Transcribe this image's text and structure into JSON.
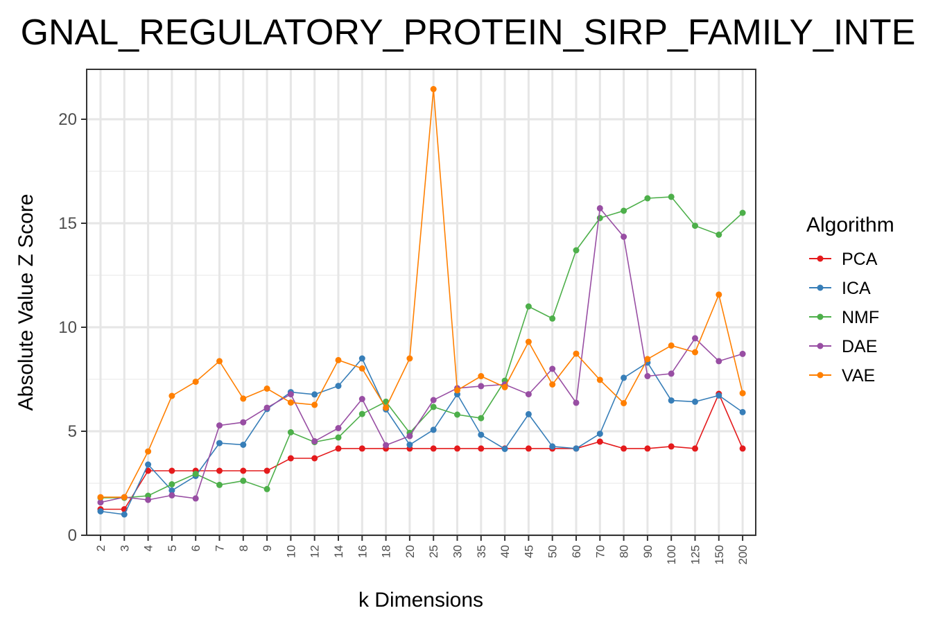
{
  "chart_data": {
    "type": "line",
    "title": "GNAL_REGULATORY_PROTEIN_SIRP_FAMILY_INTE",
    "xlabel": "k Dimensions",
    "ylabel": "Absolute Value Z Score",
    "categories": [
      "2",
      "3",
      "4",
      "5",
      "6",
      "7",
      "8",
      "9",
      "10",
      "12",
      "14",
      "16",
      "18",
      "20",
      "25",
      "30",
      "35",
      "40",
      "45",
      "50",
      "60",
      "70",
      "80",
      "90",
      "100",
      "125",
      "150",
      "200"
    ],
    "ylim": [
      0,
      22.4
    ],
    "yticks": [
      0,
      5,
      10,
      15,
      20
    ],
    "grid": true,
    "legend": {
      "title": "Algorithm",
      "position": "right"
    },
    "series": [
      {
        "name": "PCA",
        "color": "#E41A1C",
        "values": [
          1.25,
          1.25,
          3.1,
          3.1,
          3.1,
          3.1,
          3.1,
          3.1,
          3.7,
          3.7,
          4.17,
          4.17,
          4.17,
          4.17,
          4.17,
          4.17,
          4.17,
          4.17,
          4.17,
          4.17,
          4.17,
          4.5,
          4.17,
          4.17,
          4.27,
          4.17,
          6.8,
          4.17
        ]
      },
      {
        "name": "ICA",
        "color": "#377EB8",
        "values": [
          1.15,
          1.0,
          3.4,
          2.15,
          2.85,
          4.43,
          4.35,
          6.07,
          6.88,
          6.77,
          7.18,
          8.5,
          6.05,
          4.35,
          5.07,
          6.78,
          4.83,
          4.15,
          5.82,
          4.27,
          4.17,
          4.88,
          7.57,
          8.3,
          6.48,
          6.42,
          6.72,
          5.92
        ]
      },
      {
        "name": "NMF",
        "color": "#4DAF4A",
        "values": [
          1.8,
          1.8,
          1.9,
          2.45,
          2.95,
          2.42,
          2.62,
          2.22,
          4.95,
          4.48,
          4.7,
          5.83,
          6.42,
          4.92,
          6.17,
          5.8,
          5.63,
          7.43,
          11.0,
          10.42,
          13.7,
          15.25,
          15.6,
          16.2,
          16.27,
          14.88,
          14.45,
          15.5
        ]
      },
      {
        "name": "DAE",
        "color": "#984EA3",
        "values": [
          1.58,
          1.83,
          1.7,
          1.92,
          1.77,
          5.28,
          5.43,
          6.13,
          6.78,
          4.52,
          5.15,
          6.55,
          4.33,
          4.77,
          6.5,
          7.07,
          7.17,
          7.25,
          6.78,
          8.0,
          6.37,
          15.72,
          14.35,
          7.65,
          7.77,
          9.47,
          8.37,
          8.72
        ]
      },
      {
        "name": "VAE",
        "color": "#FF7F00",
        "values": [
          1.83,
          1.83,
          4.03,
          6.7,
          7.38,
          8.37,
          6.57,
          7.05,
          6.38,
          6.27,
          8.42,
          8.02,
          6.13,
          8.5,
          21.45,
          6.97,
          7.65,
          7.12,
          9.3,
          7.25,
          8.73,
          7.47,
          6.35,
          8.47,
          9.12,
          8.8,
          11.57,
          6.83
        ]
      }
    ]
  }
}
